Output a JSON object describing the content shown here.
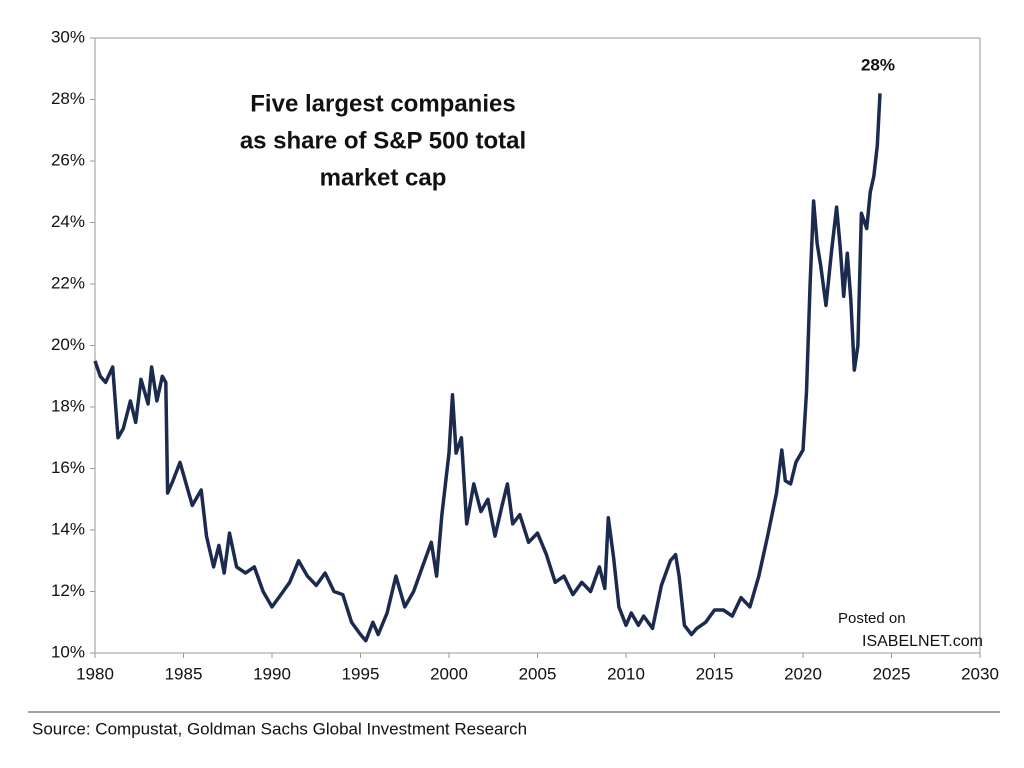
{
  "chart_data": {
    "type": "line",
    "title": [
      "Five largest companies",
      "as share of S&P 500 total",
      "market cap"
    ],
    "source": "Source: Compustat, Goldman Sachs Global Investment Research",
    "watermark": [
      "Posted on",
      "ISABELNET.com"
    ],
    "last_value_label": "28%",
    "xlim": [
      1980,
      2030
    ],
    "xticks": [
      1980,
      1985,
      1990,
      1995,
      2000,
      2005,
      2010,
      2015,
      2020,
      2025,
      2030
    ],
    "ylim": [
      10,
      30
    ],
    "yticks": [
      {
        "value": 10,
        "label": "10%"
      },
      {
        "value": 12,
        "label": "12%"
      },
      {
        "value": 14,
        "label": "14%"
      },
      {
        "value": 16,
        "label": "16%"
      },
      {
        "value": 18,
        "label": "18%"
      },
      {
        "value": 20,
        "label": "20%"
      },
      {
        "value": 22,
        "label": "22%"
      },
      {
        "value": 24,
        "label": "24%"
      },
      {
        "value": 26,
        "label": "26%"
      },
      {
        "value": 28,
        "label": "28%"
      },
      {
        "value": 30,
        "label": "30%"
      }
    ],
    "color": "#1b2a4e",
    "x": [
      1980,
      1980.3,
      1980.6,
      1981,
      1981.3,
      1981.6,
      1982,
      1982.3,
      1982.6,
      1983,
      1983.2,
      1983.5,
      1983.8,
      1984,
      1984.1,
      1984.4,
      1984.8,
      1985,
      1985.5,
      1986,
      1986.3,
      1986.7,
      1987,
      1987.3,
      1987.6,
      1988,
      1988.5,
      1989,
      1989.5,
      1990,
      1990.5,
      1991,
      1991.5,
      1992,
      1992.5,
      1993,
      1993.5,
      1994,
      1994.5,
      1995,
      1995.3,
      1995.7,
      1996,
      1996.5,
      1997,
      1997.5,
      1998,
      1998.5,
      1999,
      1999.3,
      1999.6,
      2000,
      2000.2,
      2000.4,
      2000.7,
      2001,
      2001.4,
      2001.8,
      2002.2,
      2002.6,
      2003,
      2003.3,
      2003.6,
      2004,
      2004.5,
      2005,
      2005.5,
      2006,
      2006.5,
      2007,
      2007.5,
      2008,
      2008.5,
      2008.8,
      2009,
      2009.3,
      2009.6,
      2010,
      2010.3,
      2010.7,
      2011,
      2011.5,
      2012,
      2012.5,
      2012.8,
      2013,
      2013.3,
      2013.7,
      2014,
      2014.5,
      2015,
      2015.5,
      2016,
      2016.5,
      2017,
      2017.5,
      2018,
      2018.5,
      2018.8,
      2019,
      2019.3,
      2019.6,
      2020,
      2020.2,
      2020.4,
      2020.6,
      2020.8,
      2021,
      2021.3,
      2021.6,
      2021.9,
      2022.1,
      2022.3,
      2022.5,
      2022.7,
      2022.9,
      2023.1,
      2023.3,
      2023.6,
      2023.8,
      2024,
      2024.2,
      2024.35
    ],
    "values": [
      19.5,
      19.0,
      18.8,
      19.3,
      17.0,
      17.3,
      18.2,
      17.5,
      18.9,
      18.1,
      19.3,
      18.2,
      19.0,
      18.8,
      15.2,
      15.6,
      16.2,
      15.8,
      14.8,
      15.3,
      13.8,
      12.8,
      13.5,
      12.6,
      13.9,
      12.8,
      12.6,
      12.8,
      12.0,
      11.5,
      11.9,
      12.3,
      13.0,
      12.5,
      12.2,
      12.6,
      12.0,
      11.9,
      11.0,
      10.6,
      10.4,
      11.0,
      10.6,
      11.3,
      12.5,
      11.5,
      12.0,
      12.8,
      13.6,
      12.5,
      14.5,
      16.5,
      18.4,
      16.5,
      17.0,
      14.2,
      15.5,
      14.6,
      15.0,
      13.8,
      14.8,
      15.5,
      14.2,
      14.5,
      13.6,
      13.9,
      13.2,
      12.3,
      12.5,
      11.9,
      12.3,
      12.0,
      12.8,
      12.1,
      14.4,
      13.1,
      11.5,
      10.9,
      11.3,
      10.9,
      11.2,
      10.8,
      12.2,
      13.0,
      13.2,
      12.5,
      10.9,
      10.6,
      10.8,
      11.0,
      11.4,
      11.4,
      11.2,
      11.8,
      11.5,
      12.5,
      13.8,
      15.2,
      16.6,
      15.6,
      15.5,
      16.2,
      16.6,
      18.5,
      22.0,
      24.7,
      23.3,
      22.6,
      21.3,
      23.0,
      24.5,
      23.2,
      21.6,
      23.0,
      21.5,
      19.2,
      20.0,
      24.3,
      23.8,
      25.0,
      25.5,
      26.5,
      28.2
    ]
  }
}
